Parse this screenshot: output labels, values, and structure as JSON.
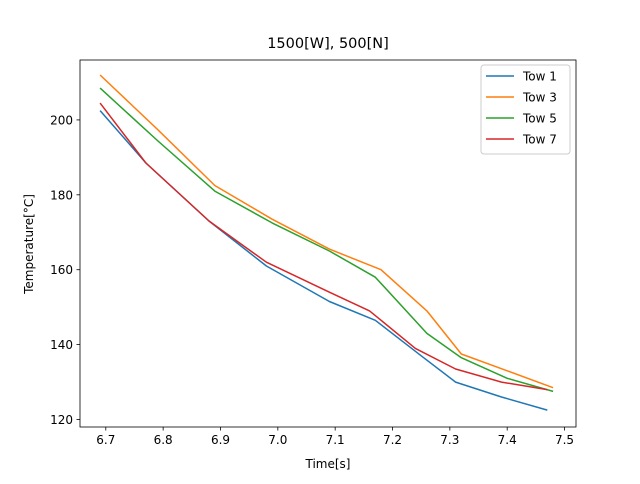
{
  "chart_data": {
    "type": "line",
    "title": "1500[W], 500[N]",
    "xlabel": "Time[s]",
    "ylabel": "Temperature[$^\\circ$C]",
    "ylabel_display": "Temperature[°C]",
    "xlim": [
      6.655,
      7.52
    ],
    "ylim": [
      118,
      216
    ],
    "xticks": [
      6.7,
      6.8,
      6.9,
      7.0,
      7.1,
      7.2,
      7.3,
      7.4,
      7.5
    ],
    "xtick_labels": [
      "6.7",
      "6.8",
      "6.9",
      "7.0",
      "7.1",
      "7.2",
      "7.3",
      "7.4",
      "7.5"
    ],
    "yticks": [
      120,
      140,
      160,
      180,
      200
    ],
    "ytick_labels": [
      "120",
      "140",
      "160",
      "180",
      "200"
    ],
    "grid": false,
    "legend_position": "top-right",
    "series": [
      {
        "name": "Tow 1",
        "color": "#1f77b4",
        "x": [
          6.69,
          6.77,
          6.88,
          6.98,
          7.09,
          7.17,
          7.25,
          7.31,
          7.39,
          7.47
        ],
        "y": [
          202.5,
          188.5,
          173,
          161,
          151.5,
          146.5,
          137,
          130,
          126,
          122.5
        ]
      },
      {
        "name": "Tow 3",
        "color": "#ff7f0e",
        "x": [
          6.69,
          6.79,
          6.89,
          6.99,
          7.09,
          7.18,
          7.26,
          7.32,
          7.4,
          7.48
        ],
        "y": [
          212,
          197.5,
          182.5,
          173.5,
          165.5,
          160,
          149,
          137.5,
          133,
          128.5
        ]
      },
      {
        "name": "Tow 5",
        "color": "#2ca02c",
        "x": [
          6.69,
          6.79,
          6.89,
          6.99,
          7.09,
          7.17,
          7.26,
          7.32,
          7.4,
          7.48
        ],
        "y": [
          208.5,
          194.5,
          181,
          172.5,
          165,
          158,
          143,
          136.5,
          131,
          127.5
        ]
      },
      {
        "name": "Tow 7",
        "color": "#d62728",
        "x": [
          6.69,
          6.77,
          6.88,
          6.98,
          7.09,
          7.16,
          7.24,
          7.31,
          7.39,
          7.47
        ],
        "y": [
          204.5,
          188.5,
          173,
          162,
          154,
          149,
          139,
          133.5,
          130,
          128
        ]
      }
    ]
  }
}
